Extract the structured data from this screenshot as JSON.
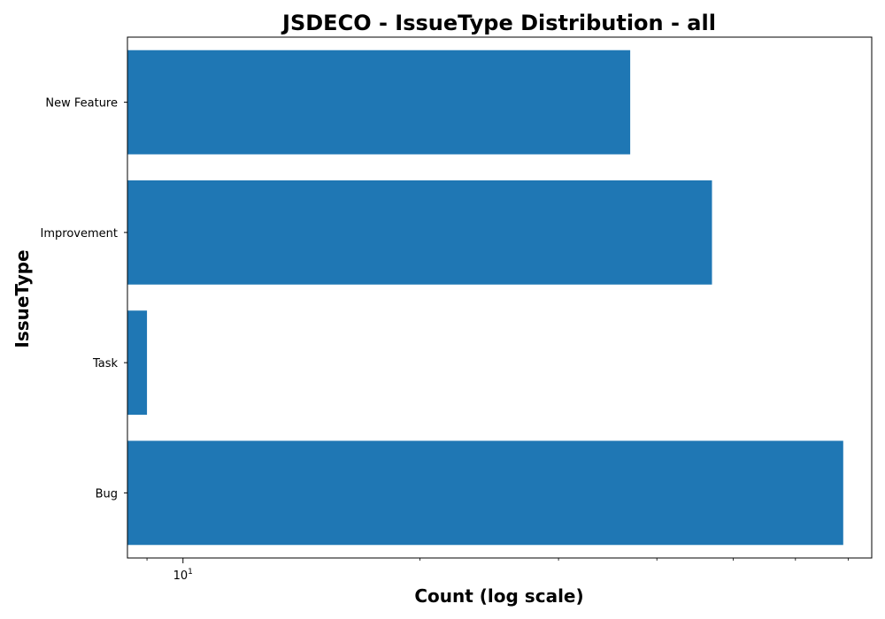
{
  "chart_data": {
    "type": "bar",
    "orientation": "horizontal",
    "title": "JSDECO - IssueType Distribution - all",
    "xlabel": "Count (log scale)",
    "ylabel": "IssueType",
    "xscale": "log",
    "xlim": [
      8.5,
      75
    ],
    "xticks": [
      {
        "value": 10,
        "base": "10",
        "exp": "1"
      }
    ],
    "categories": [
      "Bug",
      "Task",
      "Improvement",
      "New Feature"
    ],
    "values": [
      69,
      9,
      47,
      37
    ],
    "color": "#1f77b4",
    "grid": false,
    "legend": false
  }
}
